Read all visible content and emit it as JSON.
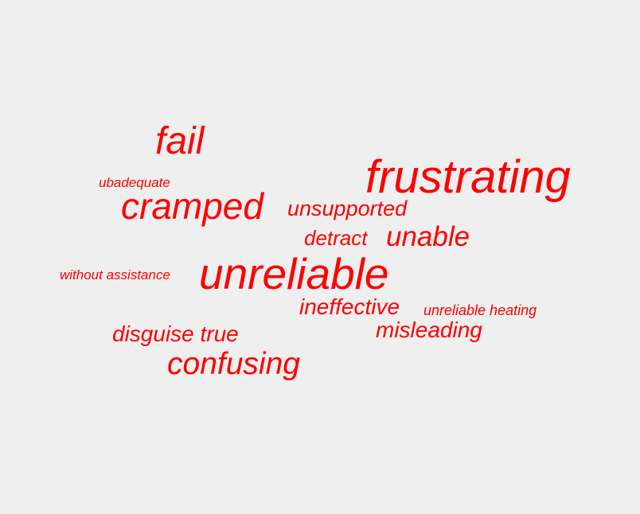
{
  "background_color": "#efefef",
  "text_color": "#ff0000",
  "words": {
    "fail": "fail",
    "frustrating": "frustrating",
    "ubadequate": "ubadequate",
    "cramped": "cramped",
    "unsupported": "unsupported",
    "detract": "detract",
    "unable": "unable",
    "without_assistance": "without assistance",
    "unreliable": "unreliable",
    "ineffective": "ineffective",
    "unreliable_heating": "unreliable heating",
    "misleading": "misleading",
    "disguise_true": "disguise true",
    "confusing": "confusing"
  }
}
